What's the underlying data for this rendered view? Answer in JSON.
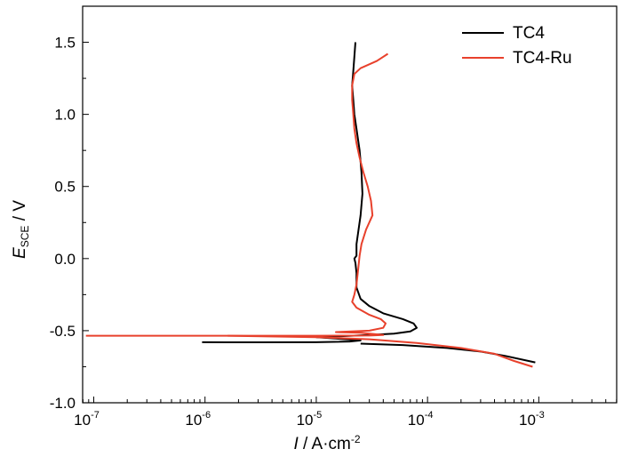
{
  "chart_data": {
    "type": "line",
    "title": "",
    "xscale": "log",
    "xlim_log10": [
      -7.1,
      -2.3
    ],
    "ylim": [
      -1.0,
      1.75
    ],
    "xlabel": {
      "italic": "I",
      "rest": " / A·cm",
      "sup": "-2"
    },
    "ylabel": {
      "italic": "E",
      "sub": "SCE",
      "rest": " / V"
    },
    "y_ticks": [
      {
        "value": -1.0,
        "label": "-1.0"
      },
      {
        "value": -0.5,
        "label": "-0.5"
      },
      {
        "value": 0.0,
        "label": "0.0"
      },
      {
        "value": 0.5,
        "label": "0.5"
      },
      {
        "value": 1.0,
        "label": "1.0"
      },
      {
        "value": 1.5,
        "label": "1.5"
      }
    ],
    "x_ticks": [
      {
        "exp": -7,
        "base": "10",
        "sup": "-7"
      },
      {
        "exp": -6,
        "base": "10",
        "sup": "-6"
      },
      {
        "exp": -5,
        "base": "10",
        "sup": "-5"
      },
      {
        "exp": -4,
        "base": "10",
        "sup": "-4"
      },
      {
        "exp": -3,
        "base": "10",
        "sup": "-3"
      }
    ],
    "legend_position": "top-right",
    "series": [
      {
        "name": "TC4",
        "color": "#000000",
        "points": [
          [
            9.4e-07,
            -0.58
          ],
          [
            3e-06,
            -0.581
          ],
          [
            1e-05,
            -0.58
          ],
          [
            2e-05,
            -0.575
          ],
          [
            2.5e-05,
            -0.568
          ],
          [
            1.5e-05,
            -0.555
          ],
          [
            1e-05,
            -0.545
          ],
          [
            3e-05,
            -0.53
          ],
          [
            5e-05,
            -0.52
          ],
          [
            7e-05,
            -0.505
          ],
          [
            8e-05,
            -0.48
          ],
          [
            7.5e-05,
            -0.45
          ],
          [
            6e-05,
            -0.42
          ],
          [
            4e-05,
            -0.38
          ],
          [
            3e-05,
            -0.33
          ],
          [
            2.5e-05,
            -0.28
          ],
          [
            2.3e-05,
            -0.2
          ],
          [
            2.3e-05,
            -0.1
          ],
          [
            2.25e-05,
            -0.03
          ],
          [
            2.2e-05,
            0.0
          ],
          [
            2.3e-05,
            0.02
          ],
          [
            2.3e-05,
            0.1
          ],
          [
            2.4e-05,
            0.2
          ],
          [
            2.5e-05,
            0.3
          ],
          [
            2.6e-05,
            0.45
          ],
          [
            2.55e-05,
            0.6
          ],
          [
            2.45e-05,
            0.75
          ],
          [
            2.3e-05,
            0.9
          ],
          [
            2.2e-05,
            1.0
          ],
          [
            2.15e-05,
            1.1
          ],
          [
            2.1e-05,
            1.2
          ],
          [
            2.15e-05,
            1.3
          ],
          [
            2.2e-05,
            1.4
          ],
          [
            2.25e-05,
            1.5
          ]
        ],
        "extra": [
          [
            2.5e-05,
            -0.59
          ],
          [
            6e-05,
            -0.6
          ],
          [
            0.00015,
            -0.62
          ],
          [
            0.0003,
            -0.645
          ],
          [
            0.0005,
            -0.675
          ],
          [
            0.00093,
            -0.72
          ]
        ]
      },
      {
        "name": "TC4-Ru",
        "color": "#e8412c",
        "points": [
          [
            8.5e-08,
            -0.535
          ],
          [
            1e-06,
            -0.535
          ],
          [
            1e-05,
            -0.535
          ],
          [
            3e-05,
            -0.534
          ],
          [
            4e-05,
            -0.53
          ],
          [
            2.5e-05,
            -0.515
          ],
          [
            1.5e-05,
            -0.51
          ],
          [
            3e-05,
            -0.5
          ],
          [
            4e-05,
            -0.48
          ],
          [
            4.2e-05,
            -0.45
          ],
          [
            3.8e-05,
            -0.42
          ],
          [
            3e-05,
            -0.39
          ],
          [
            2.3e-05,
            -0.34
          ],
          [
            2.1e-05,
            -0.3
          ],
          [
            2.2e-05,
            -0.25
          ],
          [
            2.3e-05,
            -0.18
          ],
          [
            2.4e-05,
            -0.05
          ],
          [
            2.45e-05,
            0.02
          ],
          [
            2.55e-05,
            0.1
          ],
          [
            2.8e-05,
            0.2
          ],
          [
            3.2e-05,
            0.3
          ],
          [
            3.1e-05,
            0.4
          ],
          [
            2.9e-05,
            0.5
          ],
          [
            2.65e-05,
            0.6
          ],
          [
            2.45e-05,
            0.7
          ],
          [
            2.3e-05,
            0.8
          ],
          [
            2.2e-05,
            0.9
          ],
          [
            2.15e-05,
            1.0
          ],
          [
            2.1e-05,
            1.1
          ],
          [
            2.1e-05,
            1.2
          ],
          [
            2.2e-05,
            1.28
          ],
          [
            2.5e-05,
            1.32
          ],
          [
            3.5e-05,
            1.37
          ],
          [
            4.4e-05,
            1.42
          ]
        ],
        "extra": [
          [
            1.6e-06,
            -0.535
          ],
          [
            1e-05,
            -0.545
          ],
          [
            3e-05,
            -0.56
          ],
          [
            8e-05,
            -0.585
          ],
          [
            0.0002,
            -0.62
          ],
          [
            0.0004,
            -0.66
          ],
          [
            0.0006,
            -0.71
          ],
          [
            0.00088,
            -0.75
          ]
        ]
      }
    ]
  }
}
